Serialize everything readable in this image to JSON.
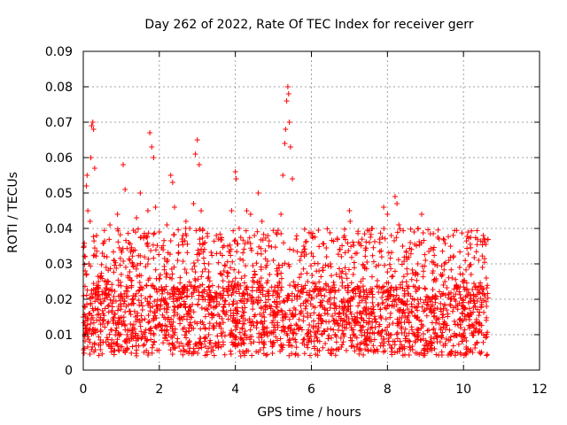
{
  "chart_data": {
    "type": "scatter",
    "title": "Day 262 of 2022, Rate Of TEC Index for receiver gerr",
    "xlabel": "GPS time / hours",
    "ylabel": "ROTI / TECUs",
    "xlim": [
      0,
      12
    ],
    "ylim": [
      0,
      0.09
    ],
    "xticks": [
      0,
      2,
      4,
      6,
      8,
      10,
      12
    ],
    "xtick_labels": [
      "0",
      "2",
      "4",
      "6",
      "8",
      "10",
      "12"
    ],
    "yticks": [
      0,
      0.01,
      0.02,
      0.03,
      0.04,
      0.05,
      0.06,
      0.07,
      0.08,
      0.09
    ],
    "ytick_labels": [
      "0",
      "0.01",
      "0.02",
      "0.03",
      "0.04",
      "0.05",
      "0.06",
      "0.07",
      "0.08",
      "0.09"
    ],
    "grid": true,
    "marker": "plus",
    "color": "#ff0000",
    "series": [
      {
        "points": [
          [
            0.0,
            0.015
          ],
          [
            0.02,
            0.035
          ],
          [
            0.05,
            0.028
          ],
          [
            0.08,
            0.052
          ],
          [
            0.1,
            0.055
          ],
          [
            0.12,
            0.045
          ],
          [
            0.15,
            0.03
          ],
          [
            0.18,
            0.042
          ],
          [
            0.2,
            0.06
          ],
          [
            0.22,
            0.069
          ],
          [
            0.25,
            0.07
          ],
          [
            0.27,
            0.068
          ],
          [
            0.3,
            0.057
          ],
          [
            0.35,
            0.038
          ],
          [
            0.4,
            0.025
          ],
          [
            0.45,
            0.019
          ],
          [
            0.5,
            0.033
          ],
          [
            0.6,
            0.029
          ],
          [
            0.7,
            0.041
          ],
          [
            0.8,
            0.031
          ],
          [
            0.9,
            0.044
          ],
          [
            1.0,
            0.027
          ],
          [
            1.05,
            0.058
          ],
          [
            1.1,
            0.051
          ],
          [
            1.2,
            0.036
          ],
          [
            1.3,
            0.03
          ],
          [
            1.4,
            0.043
          ],
          [
            1.5,
            0.05
          ],
          [
            1.6,
            0.038
          ],
          [
            1.7,
            0.045
          ],
          [
            1.75,
            0.067
          ],
          [
            1.8,
            0.063
          ],
          [
            1.85,
            0.06
          ],
          [
            1.9,
            0.046
          ],
          [
            2.0,
            0.039
          ],
          [
            2.1,
            0.034
          ],
          [
            2.2,
            0.041
          ],
          [
            2.3,
            0.055
          ],
          [
            2.35,
            0.053
          ],
          [
            2.4,
            0.046
          ],
          [
            2.5,
            0.033
          ],
          [
            2.6,
            0.037
          ],
          [
            2.7,
            0.042
          ],
          [
            2.8,
            0.04
          ],
          [
            2.9,
            0.047
          ],
          [
            2.95,
            0.061
          ],
          [
            3.0,
            0.065
          ],
          [
            3.05,
            0.058
          ],
          [
            3.1,
            0.045
          ],
          [
            3.2,
            0.036
          ],
          [
            3.3,
            0.03
          ],
          [
            3.5,
            0.038
          ],
          [
            3.6,
            0.033
          ],
          [
            3.7,
            0.028
          ],
          [
            3.8,
            0.035
          ],
          [
            3.9,
            0.045
          ],
          [
            4.0,
            0.056
          ],
          [
            4.02,
            0.054
          ],
          [
            4.1,
            0.04
          ],
          [
            4.2,
            0.031
          ],
          [
            4.3,
            0.045
          ],
          [
            4.4,
            0.044
          ],
          [
            4.5,
            0.038
          ],
          [
            4.6,
            0.05
          ],
          [
            4.7,
            0.042
          ],
          [
            4.8,
            0.029
          ],
          [
            4.9,
            0.027
          ],
          [
            5.0,
            0.031
          ],
          [
            5.1,
            0.028
          ],
          [
            5.2,
            0.044
          ],
          [
            5.25,
            0.055
          ],
          [
            5.3,
            0.064
          ],
          [
            5.32,
            0.068
          ],
          [
            5.35,
            0.076
          ],
          [
            5.38,
            0.08
          ],
          [
            5.4,
            0.078
          ],
          [
            5.42,
            0.07
          ],
          [
            5.45,
            0.063
          ],
          [
            5.5,
            0.054
          ],
          [
            5.6,
            0.037
          ],
          [
            5.7,
            0.031
          ],
          [
            5.8,
            0.035
          ],
          [
            5.9,
            0.025
          ],
          [
            6.0,
            0.033
          ],
          [
            6.2,
            0.028
          ],
          [
            6.4,
            0.032
          ],
          [
            6.5,
            0.03
          ],
          [
            6.6,
            0.024
          ],
          [
            6.8,
            0.026
          ],
          [
            7.0,
            0.045
          ],
          [
            7.02,
            0.042
          ],
          [
            7.1,
            0.027
          ],
          [
            7.3,
            0.025
          ],
          [
            7.4,
            0.029
          ],
          [
            7.6,
            0.023
          ],
          [
            7.8,
            0.036
          ],
          [
            7.9,
            0.046
          ],
          [
            8.0,
            0.044
          ],
          [
            8.1,
            0.038
          ],
          [
            8.2,
            0.049
          ],
          [
            8.25,
            0.047
          ],
          [
            8.3,
            0.041
          ],
          [
            8.4,
            0.035
          ],
          [
            8.5,
            0.032
          ],
          [
            8.6,
            0.036
          ],
          [
            8.7,
            0.039
          ],
          [
            8.8,
            0.03
          ],
          [
            8.9,
            0.044
          ],
          [
            9.0,
            0.031
          ],
          [
            9.2,
            0.028
          ],
          [
            9.4,
            0.027
          ],
          [
            9.5,
            0.03
          ],
          [
            9.7,
            0.026
          ],
          [
            9.9,
            0.029
          ],
          [
            10.0,
            0.025
          ],
          [
            10.2,
            0.027
          ],
          [
            10.4,
            0.031
          ],
          [
            10.5,
            0.029
          ],
          [
            10.6,
            0.026
          ]
        ]
      }
    ],
    "dense_band": {
      "x_range": [
        0,
        10.65
      ],
      "y_core": [
        0.004,
        0.024
      ],
      "y_scatter": [
        0.024,
        0.04
      ]
    }
  }
}
